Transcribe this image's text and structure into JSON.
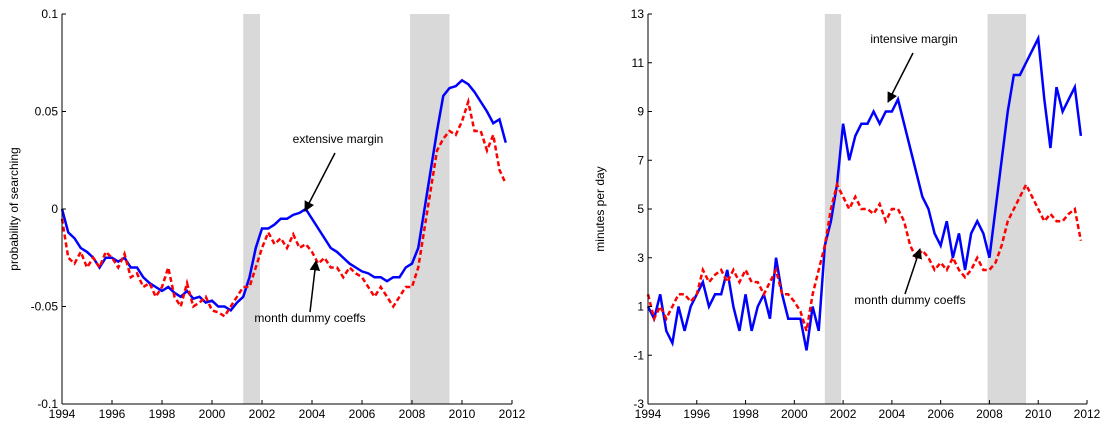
{
  "chart_data": [
    {
      "type": "line",
      "ylabel": "probability of searching",
      "x": [
        1994,
        1994.25,
        1994.5,
        1994.75,
        1995,
        1995.25,
        1995.5,
        1995.75,
        1996,
        1996.25,
        1996.5,
        1996.75,
        1997,
        1997.25,
        1997.5,
        1997.75,
        1998,
        1998.25,
        1998.5,
        1998.75,
        1999,
        1999.25,
        1999.5,
        1999.75,
        2000,
        2000.25,
        2000.5,
        2000.75,
        2001,
        2001.25,
        2001.5,
        2001.75,
        2002,
        2002.25,
        2002.5,
        2002.75,
        2003,
        2003.25,
        2003.5,
        2003.75,
        2004,
        2004.25,
        2004.5,
        2004.75,
        2005,
        2005.25,
        2005.5,
        2005.75,
        2006,
        2006.25,
        2006.5,
        2006.75,
        2007,
        2007.25,
        2007.5,
        2007.75,
        2008,
        2008.25,
        2008.5,
        2008.75,
        2009,
        2009.25,
        2009.5,
        2009.75,
        2010,
        2010.25,
        2010.5,
        2010.75,
        2011,
        2011.25,
        2011.5,
        2011.75
      ],
      "series": [
        {
          "color": "#0000ff",
          "linestyle": "solid",
          "values": [
            0,
            -0.012,
            -0.015,
            -0.02,
            -0.022,
            -0.025,
            -0.03,
            -0.025,
            -0.025,
            -0.027,
            -0.025,
            -0.03,
            -0.03,
            -0.035,
            -0.038,
            -0.04,
            -0.042,
            -0.04,
            -0.043,
            -0.045,
            -0.042,
            -0.046,
            -0.045,
            -0.048,
            -0.047,
            -0.05,
            -0.05,
            -0.052,
            -0.048,
            -0.045,
            -0.035,
            -0.02,
            -0.01,
            -0.01,
            -0.008,
            -0.005,
            -0.005,
            -0.003,
            -0.002,
            0,
            -0.005,
            -0.01,
            -0.015,
            -0.02,
            -0.022,
            -0.025,
            -0.028,
            -0.03,
            -0.032,
            -0.033,
            -0.035,
            -0.035,
            -0.037,
            -0.035,
            -0.035,
            -0.03,
            -0.028,
            -0.02,
            0,
            0.02,
            0.04,
            0.058,
            0.062,
            0.063,
            0.066,
            0.064,
            0.06,
            0.055,
            0.05,
            0.044,
            0.046,
            0.034
          ]
        },
        {
          "color": "#ff0000",
          "linestyle": "dashed",
          "values": [
            -0.005,
            -0.025,
            -0.028,
            -0.022,
            -0.03,
            -0.025,
            -0.03,
            -0.022,
            -0.025,
            -0.03,
            -0.023,
            -0.035,
            -0.033,
            -0.04,
            -0.038,
            -0.045,
            -0.04,
            -0.03,
            -0.045,
            -0.05,
            -0.038,
            -0.05,
            -0.048,
            -0.045,
            -0.052,
            -0.053,
            -0.055,
            -0.05,
            -0.045,
            -0.04,
            -0.04,
            -0.03,
            -0.02,
            -0.012,
            -0.018,
            -0.015,
            -0.02,
            -0.013,
            -0.02,
            -0.018,
            -0.022,
            -0.028,
            -0.025,
            -0.03,
            -0.03,
            -0.035,
            -0.03,
            -0.033,
            -0.035,
            -0.04,
            -0.045,
            -0.04,
            -0.045,
            -0.05,
            -0.045,
            -0.04,
            -0.04,
            -0.03,
            -0.01,
            0.01,
            0.03,
            0.036,
            0.04,
            0.038,
            0.045,
            0.055,
            0.04,
            0.04,
            0.03,
            0.038,
            0.02,
            0.013
          ]
        }
      ],
      "shaded": [
        [
          2001.25,
          2001.92
        ],
        [
          2007.92,
          2009.5
        ]
      ],
      "annotations": [
        "extensive margin",
        "month dummy coeffs"
      ],
      "xlim": [
        1994,
        2012
      ],
      "xticks": [
        1994,
        1996,
        1998,
        2000,
        2002,
        2004,
        2006,
        2008,
        2010,
        2012
      ],
      "ylim": [
        -0.1,
        0.1
      ],
      "yticks": [
        -0.1,
        -0.05,
        0,
        0.05,
        0.1
      ]
    },
    {
      "type": "line",
      "ylabel": "minutes per day",
      "x": [
        1994,
        1994.25,
        1994.5,
        1994.75,
        1995,
        1995.25,
        1995.5,
        1995.75,
        1996,
        1996.25,
        1996.5,
        1996.75,
        1997,
        1997.25,
        1997.5,
        1997.75,
        1998,
        1998.25,
        1998.5,
        1998.75,
        1999,
        1999.25,
        1999.5,
        1999.75,
        2000,
        2000.25,
        2000.5,
        2000.75,
        2001,
        2001.25,
        2001.5,
        2001.75,
        2002,
        2002.25,
        2002.5,
        2002.75,
        2003,
        2003.25,
        2003.5,
        2003.75,
        2004,
        2004.25,
        2004.5,
        2004.75,
        2005,
        2005.25,
        2005.5,
        2005.75,
        2006,
        2006.25,
        2006.5,
        2006.75,
        2007,
        2007.25,
        2007.5,
        2007.75,
        2008,
        2008.25,
        2008.5,
        2008.75,
        2009,
        2009.25,
        2009.5,
        2009.75,
        2010,
        2010.25,
        2010.5,
        2010.75,
        2011,
        2011.25,
        2011.5,
        2011.75
      ],
      "series": [
        {
          "color": "#0000ff",
          "linestyle": "solid",
          "values": [
            1,
            0.5,
            1.5,
            0,
            -0.5,
            1,
            0,
            1,
            1.5,
            2,
            1,
            1.5,
            1.5,
            2.5,
            1,
            0,
            1.5,
            0,
            1,
            1.5,
            0.5,
            3,
            1.5,
            0.5,
            0.5,
            0.5,
            -0.8,
            1,
            0,
            3.5,
            4.5,
            6,
            8.5,
            7,
            8,
            8.5,
            8.5,
            9,
            8.5,
            9,
            9,
            9.5,
            8.5,
            7.5,
            6.5,
            5.5,
            5,
            4,
            3.5,
            4.5,
            3,
            4,
            2.5,
            4,
            4.5,
            4,
            3,
            5,
            7,
            9,
            10.5,
            10.5,
            11,
            11.5,
            12,
            9.5,
            7.5,
            10,
            9,
            9.5,
            10,
            8
          ]
        },
        {
          "color": "#ff0000",
          "linestyle": "dashed",
          "values": [
            1.5,
            0.5,
            1,
            0.5,
            1,
            1.5,
            1.5,
            1.2,
            1.5,
            2.5,
            2,
            2.3,
            2.5,
            2,
            2.5,
            2,
            2.5,
            2,
            2,
            1.5,
            2,
            2.5,
            1.5,
            1.5,
            1.2,
            0.8,
            0,
            1.5,
            2.5,
            3.5,
            5,
            6,
            5.5,
            5,
            5.5,
            5,
            5,
            4.8,
            5.2,
            4.5,
            5,
            5,
            4.5,
            3.5,
            3,
            3.3,
            3,
            2.5,
            2.8,
            2.5,
            3,
            2.5,
            2.2,
            2.5,
            3,
            2.5,
            2.5,
            2.8,
            3.5,
            4.5,
            5,
            5.5,
            6,
            5.5,
            5,
            4.5,
            4.8,
            4.5,
            4.5,
            4.8,
            5,
            3.7
          ]
        }
      ],
      "shaded": [
        [
          2001.25,
          2001.92
        ],
        [
          2007.92,
          2009.5
        ]
      ],
      "annotations": [
        "intensive margin",
        "month dummy coeffs"
      ],
      "xlim": [
        1994,
        2012
      ],
      "xticks": [
        1994,
        1996,
        1998,
        2000,
        2002,
        2004,
        2006,
        2008,
        2010,
        2012
      ],
      "ylim": [
        -3,
        13
      ],
      "yticks": [
        -3,
        -1,
        1,
        3,
        5,
        7,
        9,
        11,
        13
      ]
    }
  ]
}
